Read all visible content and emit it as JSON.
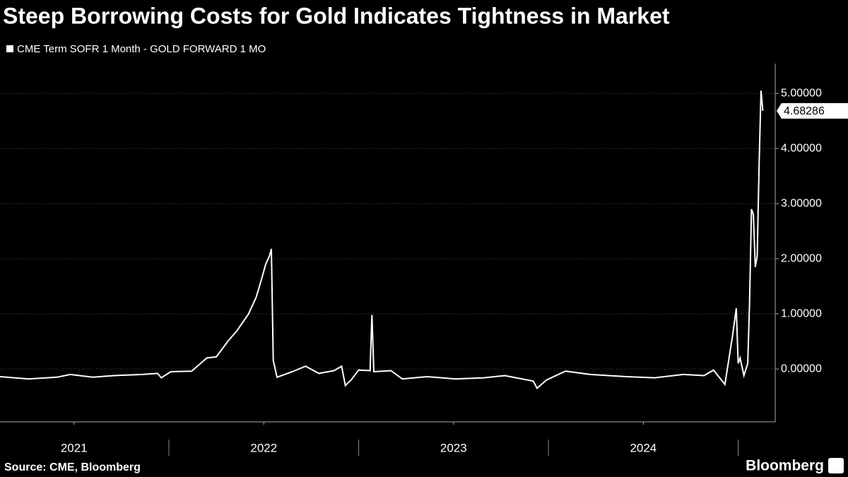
{
  "chart_data": {
    "type": "line",
    "title": "Steep Borrowing Costs for Gold Indicates Tightness in Market",
    "source": "Source: CME, Bloomberg",
    "brand": "Bloomberg",
    "grid": true,
    "x": [
      2021.11,
      2021.26,
      2021.41,
      2021.48,
      2021.6,
      2021.71,
      2021.86,
      2021.94,
      2021.96,
      2022.01,
      2022.12,
      2022.2,
      2022.25,
      2022.31,
      2022.36,
      2022.42,
      2022.46,
      2022.49,
      2022.51,
      2022.53,
      2022.54,
      2022.55,
      2022.57,
      2022.65,
      2022.72,
      2022.79,
      2022.87,
      2022.91,
      2022.93,
      2022.96,
      2023.0,
      2023.06,
      2023.07,
      2023.08,
      2023.17,
      2023.23,
      2023.36,
      2023.51,
      2023.66,
      2023.77,
      2023.92,
      2023.94,
      2023.99,
      2024.09,
      2024.22,
      2024.41,
      2024.56,
      2024.71,
      2024.82,
      2024.87,
      2024.93,
      2024.97,
      2024.99,
      2025.0,
      2025.01,
      2025.03,
      2025.05,
      2025.06,
      2025.07,
      2025.08,
      2025.09,
      2025.1,
      2025.11,
      2025.12,
      2025.13
    ],
    "series": [
      {
        "name": "CME Term SOFR 1 Month - GOLD FORWARD 1 MO",
        "color": "#ffffff",
        "values": [
          -0.14,
          -0.18,
          -0.15,
          -0.1,
          -0.15,
          -0.12,
          -0.1,
          -0.08,
          -0.16,
          -0.05,
          -0.04,
          0.2,
          0.22,
          0.5,
          0.7,
          1.0,
          1.3,
          1.65,
          1.9,
          2.05,
          2.18,
          0.15,
          -0.15,
          -0.05,
          0.05,
          -0.08,
          -0.03,
          0.05,
          -0.3,
          -0.2,
          -0.02,
          -0.03,
          0.98,
          -0.05,
          -0.03,
          -0.18,
          -0.14,
          -0.18,
          -0.16,
          -0.12,
          -0.22,
          -0.35,
          -0.2,
          -0.04,
          -0.1,
          -0.14,
          -0.16,
          -0.1,
          -0.12,
          -0.02,
          -0.28,
          0.6,
          1.1,
          0.1,
          0.2,
          -0.12,
          0.1,
          1.2,
          2.9,
          2.8,
          1.85,
          2.05,
          3.7,
          5.05,
          4.68286
        ]
      }
    ],
    "xlim": [
      2021.11,
      2025.195
    ],
    "xticks": [
      {
        "value": 2021.5,
        "label": "2021"
      },
      {
        "value": 2022.5,
        "label": "2022"
      },
      {
        "value": 2023.5,
        "label": "2023"
      },
      {
        "value": 2024.5,
        "label": "2024"
      }
    ],
    "ylim": [
      -0.96,
      5.54
    ],
    "yticks": [
      {
        "value": 0,
        "label": "0.00000"
      },
      {
        "value": 1,
        "label": "1.00000"
      },
      {
        "value": 2,
        "label": "2.00000"
      },
      {
        "value": 3,
        "label": "3.00000"
      },
      {
        "value": 4,
        "label": "4.00000"
      },
      {
        "value": 5,
        "label": "5.00000"
      }
    ]
  }
}
